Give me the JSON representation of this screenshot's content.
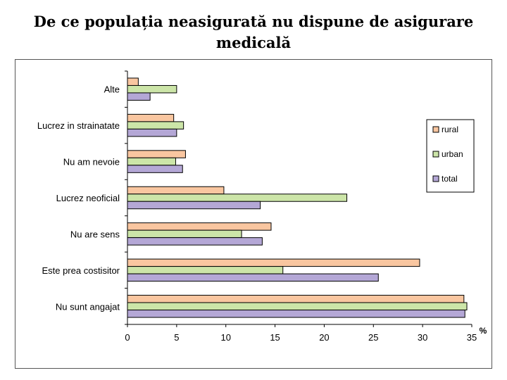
{
  "title_lines": [
    "De ce populația neasigurată nu dispune de asigurare",
    "medicală"
  ],
  "chart_data": {
    "type": "bar",
    "orientation": "horizontal",
    "categories": [
      "Alte",
      "Lucrez in strainatate",
      "Nu am nevoie",
      "Lucrez neoficial",
      "Nu are sens",
      "Este prea costisitor",
      "Nu sunt angajat"
    ],
    "series": [
      {
        "name": "rural",
        "color": "#F9C6A0",
        "values": [
          1.1,
          4.7,
          5.9,
          9.8,
          14.6,
          29.7,
          34.2
        ]
      },
      {
        "name": "urban",
        "color": "#CCE5A8",
        "values": [
          5.0,
          5.7,
          4.9,
          22.3,
          11.6,
          15.8,
          34.5
        ]
      },
      {
        "name": "total",
        "color": "#B4A7D6",
        "values": [
          2.3,
          5.0,
          5.6,
          13.5,
          13.7,
          25.5,
          34.3
        ]
      }
    ],
    "xlim": [
      0,
      35
    ],
    "xticks": [
      "0",
      "5",
      "10",
      "15",
      "20",
      "25",
      "30",
      "35"
    ],
    "xunit": "%",
    "legend_position": "right"
  }
}
